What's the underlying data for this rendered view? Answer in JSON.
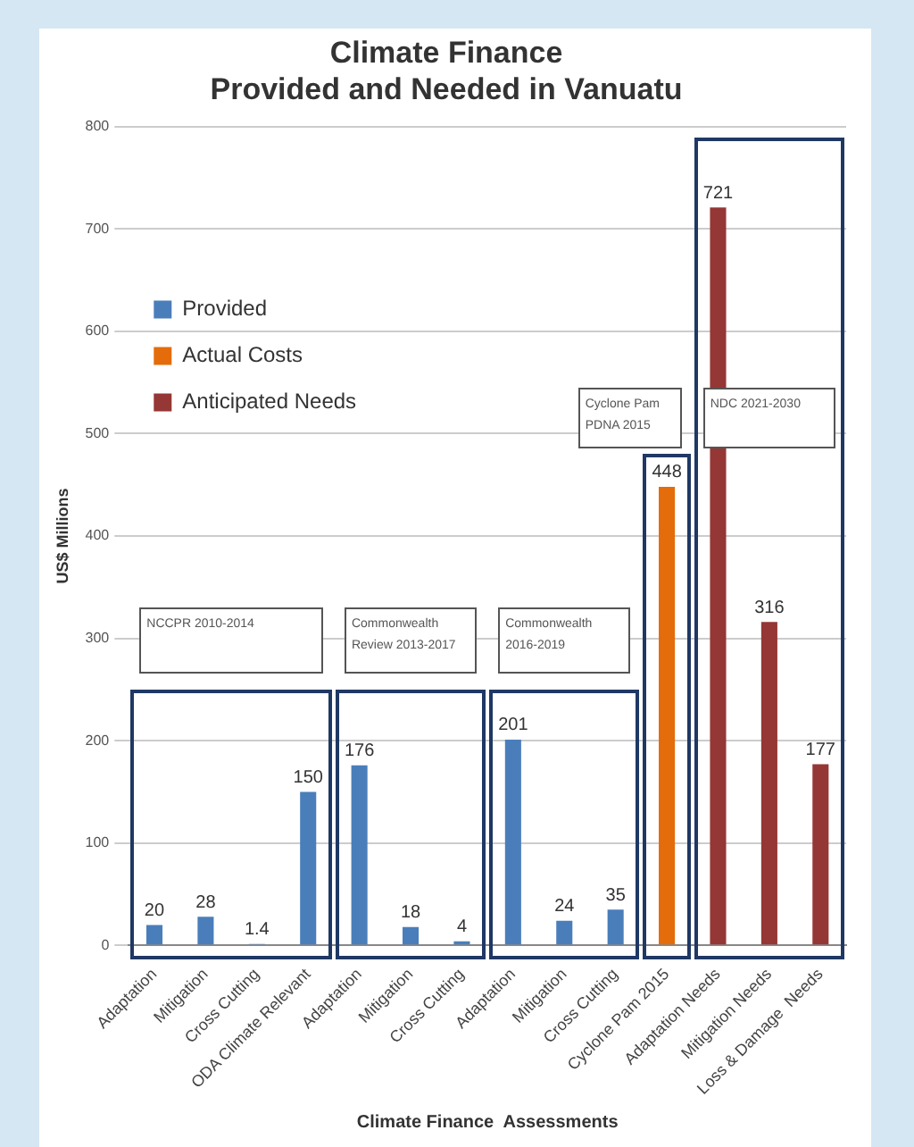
{
  "chart_data": {
    "type": "bar",
    "title": [
      "Climate Finance",
      "Provided and Needed in Vanuatu"
    ],
    "xlabel": "Climate Finance  Assessments",
    "ylabel": "US$ Millions",
    "categories": [
      "Adaptation",
      "Mitigation",
      "Cross Cutting",
      "ODA Climate Relevant",
      "Adaptation",
      "Mitigation",
      "Cross Cutting",
      "Adaptation",
      "Mitigation",
      "Cross Cutting",
      "Cyclone Pam 2015",
      "Adaptation Needs",
      "Mitigation Needs",
      "Loss & Damage  Needs"
    ],
    "series": [
      {
        "name": "Provided",
        "color": "#4a7ebb",
        "values": [
          20,
          28,
          1.4,
          150,
          176,
          18,
          4,
          201,
          24,
          35,
          null,
          null,
          null,
          null
        ]
      },
      {
        "name": "Actual Costs",
        "color": "#e46c0a",
        "values": [
          null,
          null,
          null,
          null,
          null,
          null,
          null,
          null,
          null,
          null,
          448,
          null,
          null,
          null
        ]
      },
      {
        "name": "Anticipated Needs",
        "color": "#953735",
        "values": [
          null,
          null,
          null,
          null,
          null,
          null,
          null,
          null,
          null,
          null,
          null,
          721,
          316,
          177
        ]
      }
    ],
    "ylim": [
      0,
      800
    ],
    "yticks": [
      0,
      100,
      200,
      300,
      400,
      500,
      600,
      700,
      800
    ],
    "grid": "y",
    "legend": "top left",
    "data_labels": true,
    "annotations": [
      "NCCPR 2010-2014",
      "Commonwealth Review 2013-2017",
      "Commonwealth 2016-2019",
      "Cyclone Pam PDNA 2015",
      "NDC 2021-2030"
    ]
  }
}
